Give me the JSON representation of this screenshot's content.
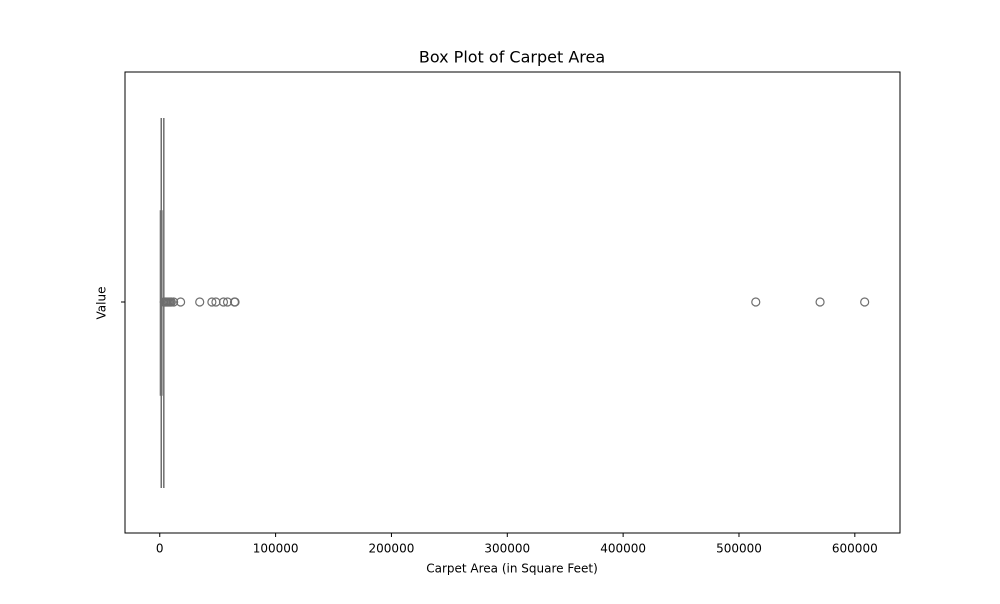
{
  "chart_data": {
    "type": "box",
    "title": "Box Plot of Carpet Area",
    "xlabel": "Carpet Area (in Square Feet)",
    "ylabel": "Value",
    "color": "#6e6e6e",
    "box": {
      "whislo": 0,
      "q1": 600,
      "med": 1100,
      "q3": 1800,
      "whishi": 3500,
      "fliers": [
        4000,
        5000,
        6000,
        7000,
        8000,
        9000,
        10000,
        12000,
        18000,
        34500,
        45000,
        48500,
        55000,
        58500,
        64500,
        65000,
        514500,
        570000,
        608500
      ]
    },
    "xlim": [
      -30000,
      639000
    ],
    "xticks": [
      0,
      100000,
      200000,
      300000,
      400000,
      500000,
      600000
    ]
  }
}
